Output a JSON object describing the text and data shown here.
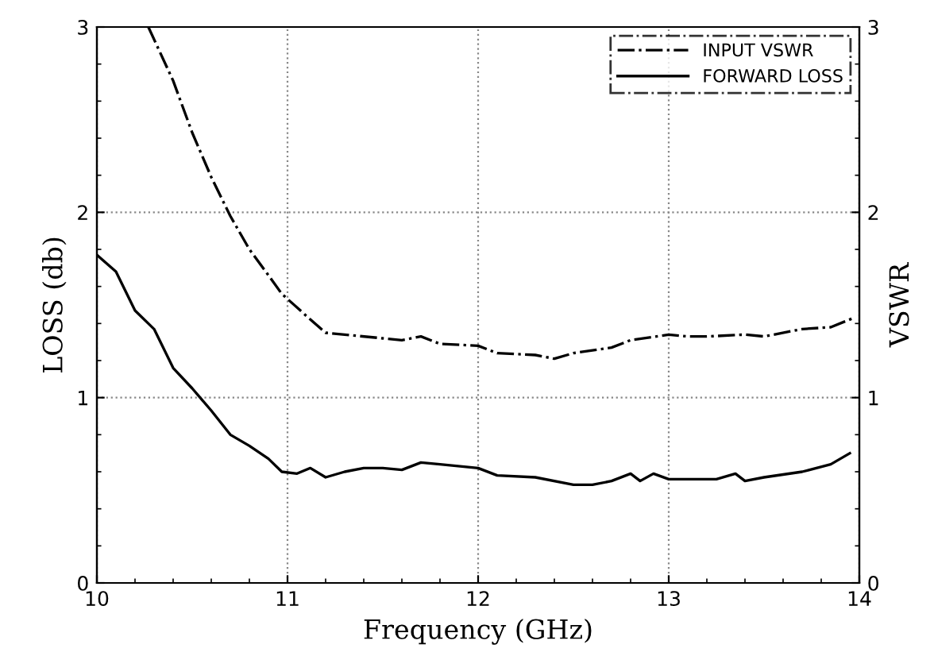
{
  "chart_data": {
    "type": "line",
    "xlabel": "Frequency (GHz)",
    "ylabel": "LOSS (db)",
    "y2label": "VSWR",
    "xlim": [
      10,
      14
    ],
    "xticks": [
      10,
      11,
      12,
      13,
      14
    ],
    "ylim": [
      0,
      3
    ],
    "yticks": [
      0,
      1,
      2,
      3
    ],
    "y2lim": [
      0,
      3
    ],
    "y2ticks": [
      0,
      1,
      2,
      3
    ],
    "grid": true,
    "legend": "top right",
    "series": [
      {
        "name": "INPUT VSWR",
        "color": "#000000",
        "line_style": "dashdot",
        "x": [
          10.27,
          10.4,
          10.5,
          10.6,
          10.7,
          10.8,
          10.9,
          10.97,
          11.1,
          11.2,
          11.3,
          11.5,
          11.6,
          11.7,
          11.8,
          12.0,
          12.1,
          12.3,
          12.4,
          12.5,
          12.7,
          12.8,
          13.0,
          13.1,
          13.2,
          13.4,
          13.5,
          13.7,
          13.85,
          13.97
        ],
        "values": [
          3.0,
          2.71,
          2.43,
          2.19,
          1.98,
          1.8,
          1.66,
          1.56,
          1.44,
          1.35,
          1.34,
          1.32,
          1.31,
          1.33,
          1.29,
          1.28,
          1.24,
          1.23,
          1.21,
          1.24,
          1.27,
          1.31,
          1.34,
          1.33,
          1.33,
          1.34,
          1.33,
          1.37,
          1.38,
          1.43
        ]
      },
      {
        "name": "FORWARD LOSS",
        "color": "#000000",
        "line_style": "solid",
        "x": [
          10.0,
          10.1,
          10.2,
          10.3,
          10.4,
          10.5,
          10.6,
          10.7,
          10.8,
          10.9,
          10.97,
          11.05,
          11.12,
          11.2,
          11.3,
          11.4,
          11.5,
          11.6,
          11.7,
          11.8,
          12.0,
          12.1,
          12.3,
          12.5,
          12.6,
          12.7,
          12.8,
          12.85,
          12.92,
          13.0,
          13.25,
          13.35,
          13.4,
          13.5,
          13.7,
          13.85,
          13.95
        ],
        "values": [
          1.77,
          1.68,
          1.47,
          1.37,
          1.16,
          1.05,
          0.93,
          0.8,
          0.74,
          0.67,
          0.6,
          0.59,
          0.62,
          0.57,
          0.6,
          0.62,
          0.62,
          0.61,
          0.65,
          0.64,
          0.62,
          0.58,
          0.57,
          0.53,
          0.53,
          0.55,
          0.59,
          0.55,
          0.59,
          0.56,
          0.56,
          0.59,
          0.55,
          0.57,
          0.6,
          0.64,
          0.7
        ]
      }
    ]
  }
}
